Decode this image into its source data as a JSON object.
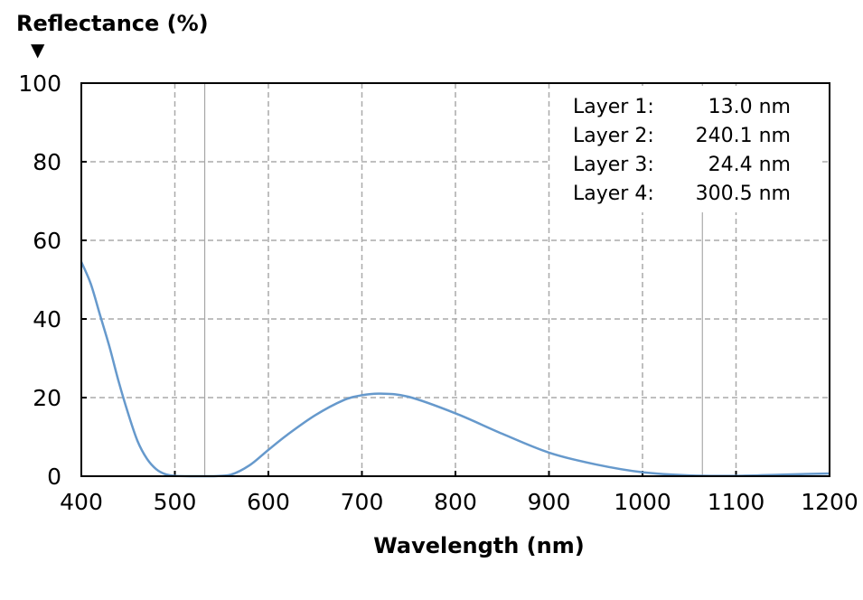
{
  "chart_data": {
    "type": "line",
    "ylabel": "Reflectance (%)",
    "ylabel_marker": "▼",
    "xlabel": "Wavelength (nm)",
    "xlim": [
      400,
      1200
    ],
    "ylim": [
      0,
      100
    ],
    "xticks": [
      "400",
      "500",
      "600",
      "700",
      "800",
      "900",
      "1000",
      "1100",
      "1200"
    ],
    "yticks": [
      "0",
      "20",
      "40",
      "60",
      "80",
      "100"
    ],
    "grid": true,
    "reference_lines_x": [
      532,
      1064
    ],
    "line_color": "#6699cc",
    "series": [
      {
        "x": [
          400,
          410,
          420,
          430,
          440,
          450,
          460,
          470,
          480,
          490,
          500,
          520,
          540,
          560,
          580,
          600,
          620,
          650,
          680,
          700,
          720,
          750,
          800,
          850,
          900,
          950,
          1000,
          1050,
          1100,
          1150,
          1200
        ],
        "y": [
          54.5,
          49,
          41,
          33,
          24,
          16,
          9,
          4.5,
          1.8,
          0.5,
          0.1,
          0,
          0,
          0.4,
          2.8,
          6.7,
          10.5,
          15.5,
          19.3,
          20.6,
          21,
          20.2,
          16,
          10.8,
          6,
          3,
          1,
          0.2,
          0.1,
          0.4,
          0.7
        ]
      }
    ],
    "annotations": [
      {
        "label": "Layer 1:",
        "value": "13.0 nm"
      },
      {
        "label": "Layer 2:",
        "value": "240.1 nm"
      },
      {
        "label": "Layer 3:",
        "value": "24.4 nm"
      },
      {
        "label": "Layer 4:",
        "value": "300.5 nm"
      }
    ]
  }
}
